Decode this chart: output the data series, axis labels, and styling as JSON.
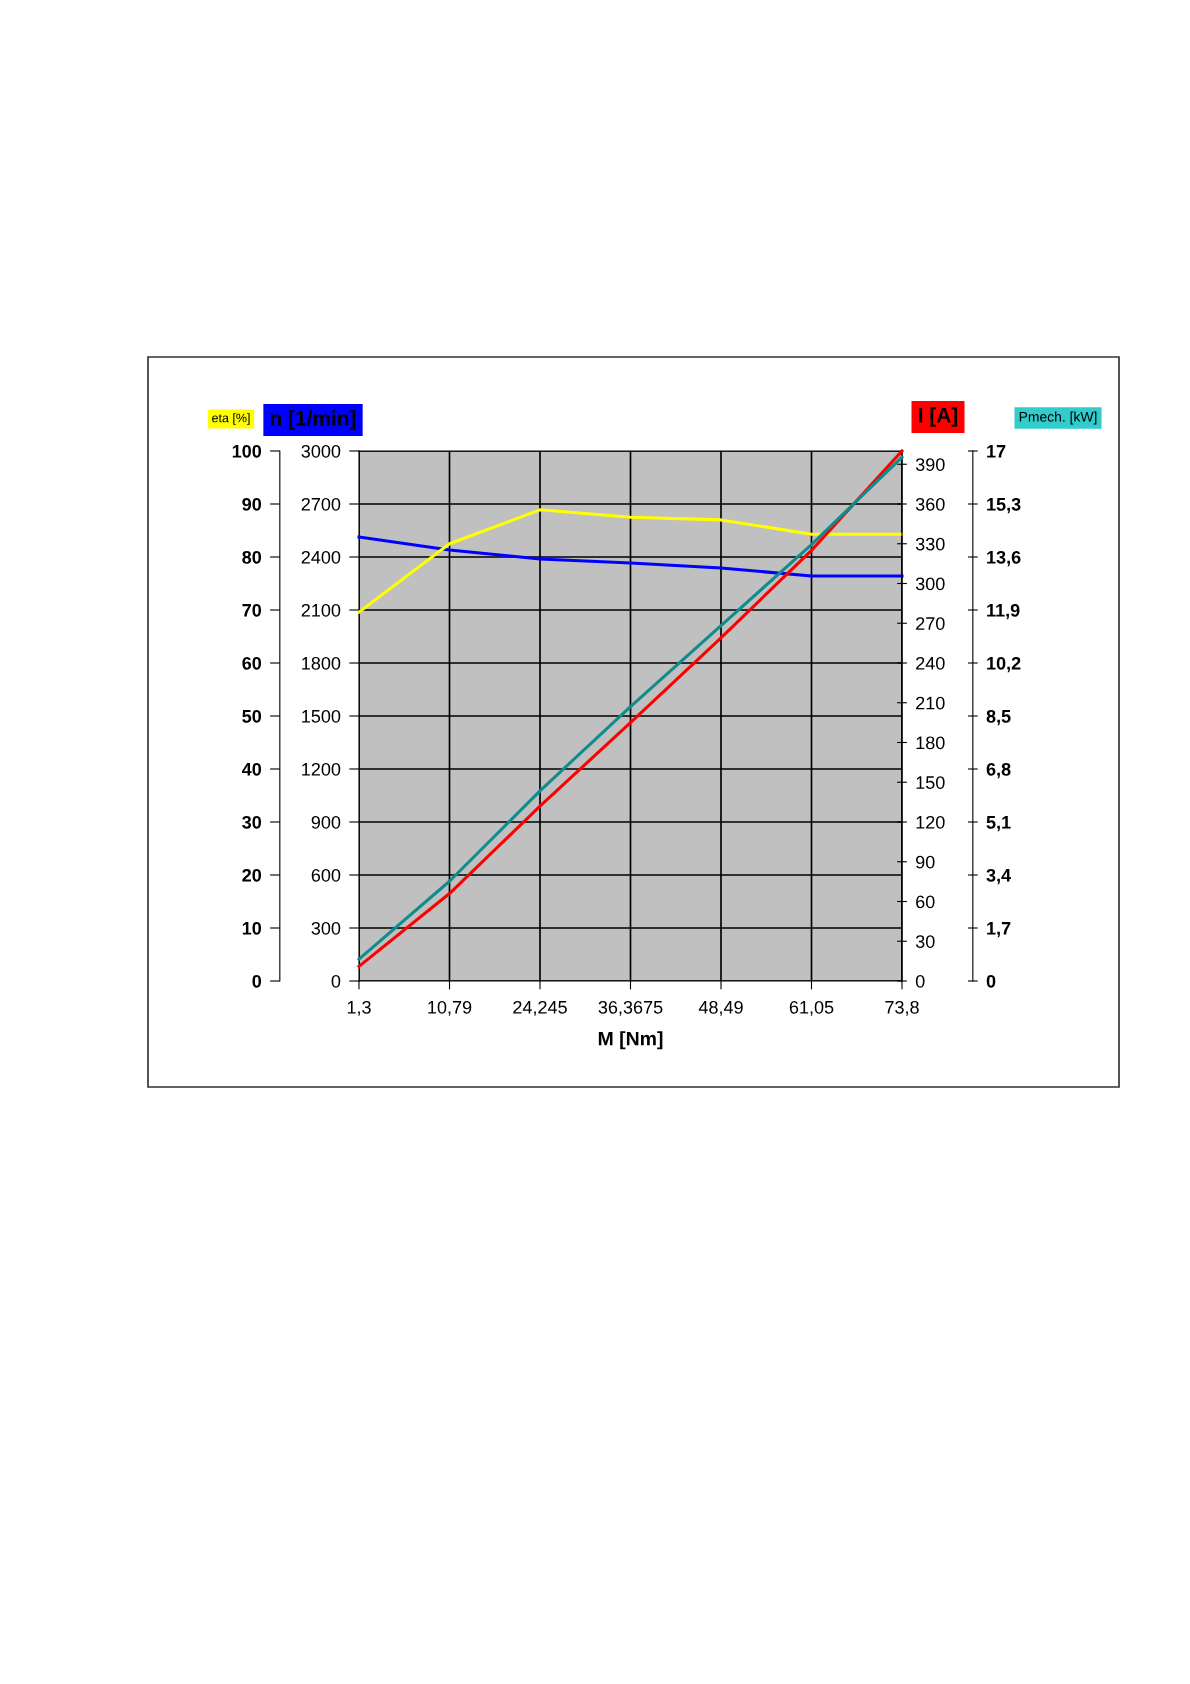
{
  "chart_data": [
    {
      "type": "line",
      "xlabel": "M [Nm]",
      "ylabel": "eta [%]",
      "y2label": "n [1/min]",
      "categories": [
        "1,3",
        "10,79",
        "24,245",
        "36,3675",
        "48,49",
        "61,05",
        "73,8"
      ],
      "series": [
        {
          "color": "#ffff00",
          "values": [
            69.6,
            82.5,
            88.9,
            87.5,
            87.0,
            84.3,
            84.3
          ]
        },
        {
          "color": "#0000ff",
          "axis": "y2",
          "values": [
            2513,
            2440,
            2389,
            2366,
            2338,
            2292,
            2292
          ]
        }
      ],
      "ylim": [
        0,
        100
      ],
      "yticks": [
        0,
        10,
        20,
        30,
        40,
        50,
        60,
        70,
        80,
        90,
        100
      ],
      "y2lim": [
        0,
        3000
      ],
      "y2ticks": [
        0,
        300,
        600,
        900,
        1200,
        1500,
        1800,
        2100,
        2400,
        2700,
        3000
      ],
      "grid": true
    },
    {
      "type": "line",
      "ylabel": "I [A]",
      "y2label": "Pmech. [kW]",
      "categories": [
        "1,3",
        "10,79",
        "24,245",
        "36,3675",
        "48,49",
        "61,05",
        "73,8"
      ],
      "series": [
        {
          "color": "#ff0000",
          "values": [
            11,
            66,
            132,
            195,
            259,
            325,
            400
          ]
        },
        {
          "color": "#108c8c",
          "axis": "y2",
          "values": [
            0.7,
            3.2,
            6.1,
            8.8,
            11.4,
            14.0,
            16.8
          ]
        }
      ],
      "ylim": [
        0,
        400
      ],
      "yticks": [
        0,
        30,
        60,
        90,
        120,
        150,
        180,
        210,
        240,
        270,
        300,
        330,
        360,
        390
      ],
      "y2lim": [
        0,
        17
      ],
      "y2ticks": [
        0,
        {
          "value": 1.7,
          "label": "1,7"
        },
        {
          "value": 3.4,
          "label": "3,4"
        },
        {
          "value": 5.1,
          "label": "5,1"
        },
        {
          "value": 6.8,
          "label": "6,8"
        },
        {
          "value": 8.5,
          "label": "8,5"
        },
        {
          "value": 10.2,
          "label": "10,2"
        },
        {
          "value": 11.9,
          "label": "11,9"
        },
        {
          "value": 13.6,
          "label": "13,6"
        },
        {
          "value": 15.3,
          "label": "15,3"
        },
        17
      ],
      "tick_labels": "y"
    }
  ]
}
